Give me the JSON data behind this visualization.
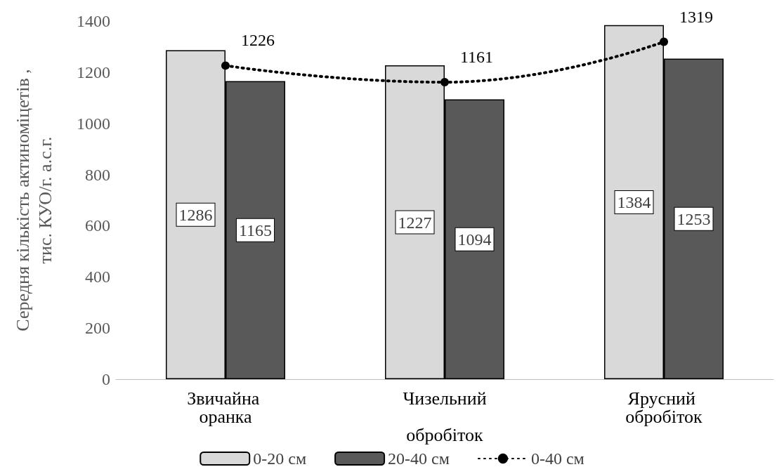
{
  "chart_data": {
    "type": "bar",
    "ylabel": "Середня кількість актиноміцетів ,\nтис. КУО/г. а.с.г.",
    "categories": [
      "Звичайна оранка",
      "Чизельний обробіток",
      "Ярусний обробіток"
    ],
    "series": [
      {
        "name": "0-20 см",
        "color": "#d9d9d9",
        "values": [
          1286,
          1227,
          1384
        ]
      },
      {
        "name": "20-40 см",
        "color": "#595959",
        "values": [
          1165,
          1094,
          1253
        ]
      },
      {
        "name": "0-40 см",
        "type": "line",
        "color": "#000000",
        "values": [
          1226,
          1161,
          1319
        ],
        "marker": "circle",
        "line_style": "dotted"
      }
    ],
    "ylim": [
      0,
      1400
    ],
    "yticks": [
      0,
      200,
      400,
      600,
      800,
      1000,
      1200,
      1400
    ],
    "grid": false,
    "legend": "bottom",
    "data_labels": true
  }
}
